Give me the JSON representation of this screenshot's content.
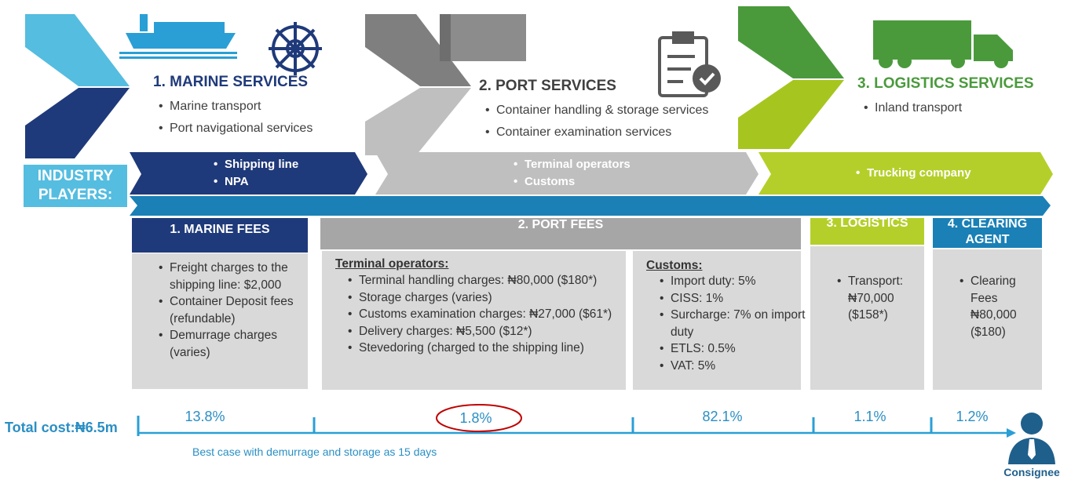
{
  "stages": [
    {
      "title": "1. MARINE SERVICES",
      "items": [
        "Marine transport",
        "Port navigational services"
      ]
    },
    {
      "title": "2. PORT SERVICES",
      "items": [
        "Container handling & storage services",
        "Container examination services"
      ]
    },
    {
      "title": "3. LOGISTICS SERVICES",
      "items": [
        "Inland transport"
      ]
    }
  ],
  "industry_players": {
    "label": "INDUSTRY PLAYERS:",
    "groups": [
      [
        "Shipping line",
        "NPA"
      ],
      [
        "Terminal operators",
        "Customs"
      ],
      [
        "Trucking company"
      ]
    ]
  },
  "fees": {
    "marine": {
      "title": "1. MARINE FEES",
      "items": [
        "Freight charges to the shipping line: $2,000",
        "Container Deposit fees (refundable)",
        "Demurrage charges (varies)"
      ]
    },
    "port": {
      "title": "2. PORT FEES",
      "sections": [
        {
          "heading": "Terminal operators:",
          "items": [
            "Terminal handling charges: ₦80,000 ($180*)",
            "Storage charges (varies)",
            "Customs examination charges: ₦27,000 ($61*)",
            "Delivery charges: ₦5,500 ($12*)",
            "Stevedoring (charged to the shipping line)"
          ]
        },
        {
          "heading": "Customs:",
          "items": [
            "Import duty: 5%",
            "CISS: 1%",
            "Surcharge: 7% on import duty",
            "ETLS: 0.5%",
            "VAT: 5%"
          ]
        }
      ]
    },
    "logistics": {
      "title": "3. LOGISTICS",
      "items": [
        "Transport: ₦70,000 ($158*)"
      ]
    },
    "clearing": {
      "title": "4. CLEARING AGENT",
      "items": [
        "Clearing Fees ₦80,000 ($180)"
      ]
    }
  },
  "total": {
    "label": "Total cost:₦6.5m",
    "shares": [
      "13.8%",
      "1.8%",
      "82.1%",
      "1.1%",
      "1.2%"
    ],
    "note": "Best case with demurrage and storage as 15 days"
  },
  "consignee": "Consignee"
}
